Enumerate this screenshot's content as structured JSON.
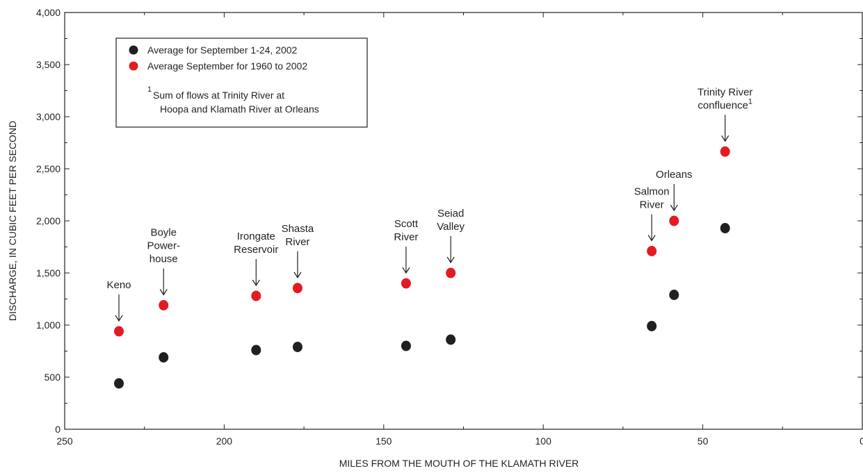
{
  "chart_data": {
    "type": "scatter",
    "xlabel": "MILES FROM THE MOUTH OF THE KLAMATH RIVER",
    "ylabel": "DISCHARGE, IN CUBIC FEET PER SECOND",
    "xlim": [
      250,
      0
    ],
    "ylim": [
      0,
      4000
    ],
    "x_reversed": true,
    "grid": false,
    "legend_position": "top-left",
    "x_ticks": [
      250,
      200,
      150,
      100,
      50,
      0
    ],
    "x_tick_labels": [
      "250",
      "200",
      "150",
      "100",
      "50",
      "0"
    ],
    "y_ticks": [
      0,
      500,
      1000,
      1500,
      2000,
      2500,
      3000,
      3500,
      4000
    ],
    "y_tick_labels": [
      "0",
      "500",
      "1,000",
      "1,500",
      "2,000",
      "2,500",
      "3,000",
      "3,500",
      "4,000"
    ],
    "series": [
      {
        "name": "Average for September 1-24, 2002",
        "color": "#231f20",
        "points": [
          {
            "x": 233,
            "y": 440
          },
          {
            "x": 219,
            "y": 690
          },
          {
            "x": 190,
            "y": 760
          },
          {
            "x": 177,
            "y": 790
          },
          {
            "x": 143,
            "y": 800
          },
          {
            "x": 129,
            "y": 860
          },
          {
            "x": 66,
            "y": 990
          },
          {
            "x": 59,
            "y": 1290
          },
          {
            "x": 43,
            "y": 1930
          }
        ]
      },
      {
        "name": "Average September for 1960 to 2002",
        "color": "#e31b23",
        "points": [
          {
            "x": 233,
            "y": 940
          },
          {
            "x": 219,
            "y": 1190
          },
          {
            "x": 190,
            "y": 1280
          },
          {
            "x": 177,
            "y": 1355
          },
          {
            "x": 143,
            "y": 1400
          },
          {
            "x": 129,
            "y": 1500
          },
          {
            "x": 66,
            "y": 1710
          },
          {
            "x": 59,
            "y": 2000
          },
          {
            "x": 43,
            "y": 2665
          }
        ]
      }
    ],
    "footnote": {
      "marker": "1",
      "lines": [
        "Sum of flows at Trinity River at",
        "Hoopa and Klamath River at Orleans"
      ]
    },
    "annotations": [
      {
        "x": 233,
        "y": 940,
        "lines": [
          "Keno"
        ]
      },
      {
        "x": 219,
        "y": 1190,
        "lines": [
          "Boyle",
          "Power-",
          "house"
        ]
      },
      {
        "x": 190,
        "y": 1280,
        "lines": [
          "Irongate",
          "Reservoir"
        ]
      },
      {
        "x": 177,
        "y": 1355,
        "lines": [
          "Shasta",
          "River"
        ]
      },
      {
        "x": 143,
        "y": 1400,
        "lines": [
          "Scott",
          "River"
        ]
      },
      {
        "x": 129,
        "y": 1500,
        "lines": [
          "Seiad",
          "Valley"
        ]
      },
      {
        "x": 66,
        "y": 1710,
        "lines": [
          "Salmon",
          "River"
        ]
      },
      {
        "x": 59,
        "y": 2000,
        "lines": [
          "Orleans"
        ]
      },
      {
        "x": 43,
        "y": 2665,
        "lines": [
          "Trinity River",
          "confluence"
        ],
        "superscript": "1"
      }
    ]
  }
}
